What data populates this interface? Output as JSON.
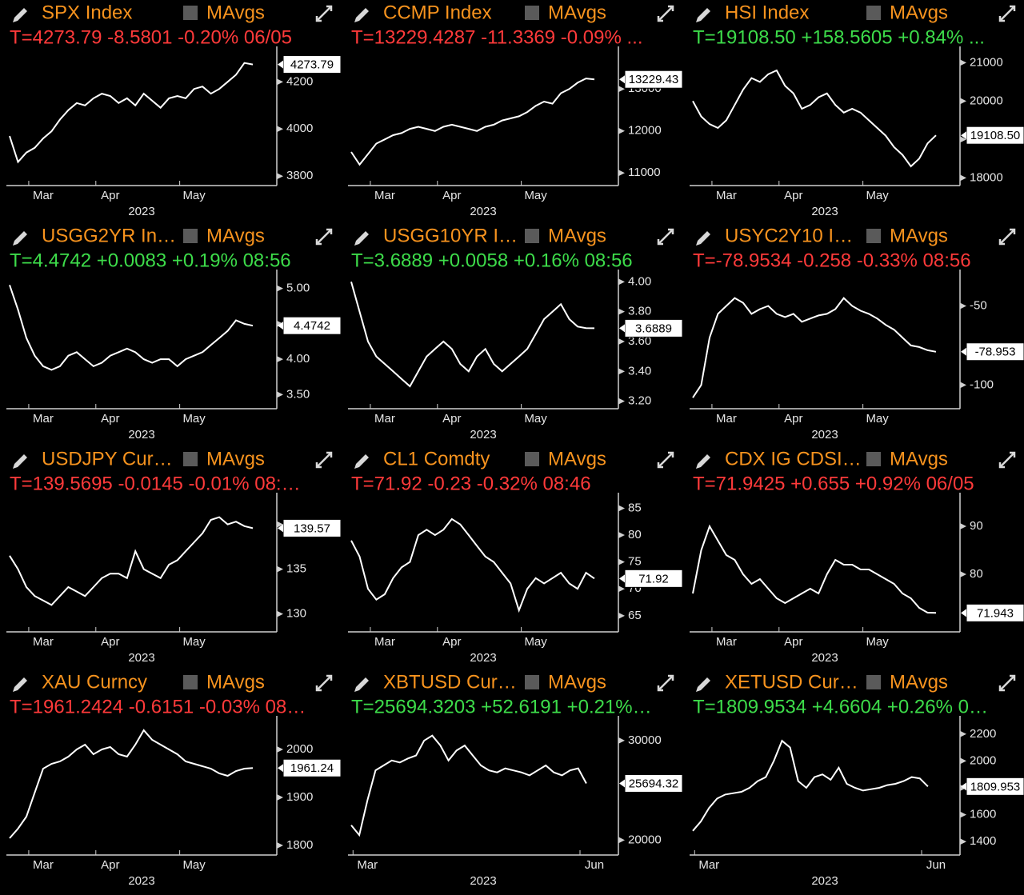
{
  "chart_data": [
    {
      "type": "line",
      "title": "SPX Index",
      "legend_label": "MAvgs",
      "quote": "T=4273.79 -8.5801 -0.20% 06/05",
      "quote_color": "#ff3a3a",
      "color": "#ffffff",
      "xlabel": "2023",
      "categories": [
        null,
        null,
        null,
        null,
        "Mar",
        null,
        null,
        null,
        null,
        null,
        null,
        null,
        "Apr",
        null,
        null,
        null,
        null,
        null,
        null,
        null,
        null,
        null,
        "May",
        null,
        null,
        null,
        null,
        null,
        null,
        null
      ],
      "values": [
        3970,
        3860,
        3900,
        3920,
        3960,
        3990,
        4040,
        4080,
        4110,
        4100,
        4130,
        4150,
        4140,
        4110,
        4130,
        4100,
        4150,
        4120,
        4090,
        4130,
        4140,
        4130,
        4170,
        4180,
        4150,
        4170,
        4200,
        4230,
        4280,
        4273.79
      ],
      "ylim": [
        3760,
        4330
      ],
      "yticks": [
        3800,
        4000,
        4200
      ],
      "last_label": 4273.79
    },
    {
      "type": "line",
      "title": "CCMP Index",
      "legend_label": "MAvgs",
      "quote": "T=13229.4287 -11.3369 -0.09% ...",
      "quote_color": "#ff3a3a",
      "color": "#ffffff",
      "xlabel": "2023",
      "categories": [
        null,
        null,
        null,
        null,
        "Mar",
        null,
        null,
        null,
        null,
        null,
        null,
        null,
        "Apr",
        null,
        null,
        null,
        null,
        null,
        null,
        null,
        null,
        null,
        "May",
        null,
        null,
        null,
        null,
        null,
        null,
        null
      ],
      "values": [
        11500,
        11200,
        11450,
        11700,
        11800,
        11900,
        11950,
        12050,
        12100,
        12050,
        12000,
        12100,
        12150,
        12100,
        12050,
        12000,
        12100,
        12150,
        12250,
        12300,
        12350,
        12450,
        12600,
        12700,
        12650,
        12900,
        13000,
        13150,
        13250,
        13229.4287
      ],
      "ylim": [
        10700,
        13900
      ],
      "yticks": [
        11000,
        12000,
        13000
      ],
      "last_label": 13229.43
    },
    {
      "type": "line",
      "title": "HSI Index",
      "legend_label": "MAvgs",
      "quote": "T=19108.50 +158.5605 +0.84% ...",
      "quote_color": "#3ddc4a",
      "color": "#ffffff",
      "xlabel": "2023",
      "categories": [
        null,
        null,
        null,
        null,
        "Mar",
        null,
        null,
        null,
        null,
        null,
        null,
        null,
        "Apr",
        null,
        null,
        null,
        null,
        null,
        null,
        null,
        null,
        null,
        "May",
        null,
        null,
        null,
        null,
        null,
        null,
        null
      ],
      "values": [
        20000,
        19600,
        19400,
        19300,
        19500,
        19900,
        20300,
        20600,
        20500,
        20700,
        20800,
        20400,
        20200,
        19800,
        19900,
        20100,
        20200,
        19900,
        19700,
        19800,
        19700,
        19500,
        19300,
        19100,
        18800,
        18600,
        18300,
        18500,
        18900,
        19108.5
      ],
      "ylim": [
        17800,
        21300
      ],
      "yticks": [
        18000,
        19000,
        20000,
        21000
      ],
      "last_label": {
        "value": 19108.5,
        "label": "19108.50"
      }
    },
    {
      "type": "line",
      "title": "USGG2YR In…",
      "legend_label": "MAvgs",
      "quote": "T=4.4742 +0.0083 +0.19% 08:56",
      "quote_color": "#3ddc4a",
      "color": "#ffffff",
      "xlabel": "2023",
      "categories": [
        null,
        null,
        null,
        null,
        "Mar",
        null,
        null,
        null,
        null,
        null,
        null,
        null,
        "Apr",
        null,
        null,
        null,
        null,
        null,
        null,
        null,
        null,
        null,
        "May",
        null,
        null,
        null,
        null,
        null,
        null,
        null
      ],
      "values": [
        5.05,
        4.7,
        4.3,
        4.05,
        3.9,
        3.85,
        3.9,
        4.05,
        4.1,
        4.0,
        3.9,
        3.95,
        4.05,
        4.1,
        4.15,
        4.1,
        4.0,
        3.95,
        4.0,
        4.0,
        3.9,
        4.0,
        4.05,
        4.1,
        4.2,
        4.3,
        4.4,
        4.55,
        4.5,
        4.4742
      ],
      "ylim": [
        3.3,
        5.2
      ],
      "yticks": [
        {
          "value": 3.5,
          "label": "3.50"
        },
        {
          "value": 4,
          "label": "4.00"
        },
        {
          "value": 4.5,
          "label": "4.50"
        },
        {
          "value": 5,
          "label": "5.00"
        }
      ],
      "last_label": 4.4742
    },
    {
      "type": "line",
      "title": "USGG10YR I…",
      "legend_label": "MAvgs",
      "quote": "T=3.6889 +0.0058 +0.16% 08:56",
      "quote_color": "#3ddc4a",
      "color": "#ffffff",
      "xlabel": "2023",
      "categories": [
        null,
        null,
        null,
        null,
        "Mar",
        null,
        null,
        null,
        null,
        null,
        null,
        null,
        "Apr",
        null,
        null,
        null,
        null,
        null,
        null,
        null,
        null,
        null,
        "May",
        null,
        null,
        null,
        null,
        null,
        null,
        null
      ],
      "values": [
        4.0,
        3.8,
        3.6,
        3.5,
        3.45,
        3.4,
        3.35,
        3.3,
        3.4,
        3.5,
        3.55,
        3.6,
        3.55,
        3.45,
        3.4,
        3.5,
        3.55,
        3.45,
        3.4,
        3.45,
        3.5,
        3.55,
        3.65,
        3.75,
        3.8,
        3.85,
        3.75,
        3.7,
        3.69,
        3.6889
      ],
      "ylim": [
        3.15,
        4.05
      ],
      "yticks": [
        {
          "value": 3.2,
          "label": "3.20"
        },
        {
          "value": 3.4,
          "label": "3.40"
        },
        {
          "value": 3.6,
          "label": "3.60"
        },
        {
          "value": 3.8,
          "label": "3.80"
        },
        {
          "value": 4,
          "label": "4.00"
        }
      ],
      "last_label": 3.6889
    },
    {
      "type": "line",
      "title": "USYC2Y10 I…",
      "legend_label": "MAvgs",
      "quote": "T=-78.9534 -0.258 -0.33% 08:56",
      "quote_color": "#ff3a3a",
      "color": "#ffffff",
      "xlabel": "2023",
      "categories": [
        null,
        null,
        null,
        null,
        "Mar",
        null,
        null,
        null,
        null,
        null,
        null,
        null,
        "Apr",
        null,
        null,
        null,
        null,
        null,
        null,
        null,
        null,
        null,
        "May",
        null,
        null,
        null,
        null,
        null,
        null,
        null
      ],
      "values": [
        -108,
        -100,
        -70,
        -55,
        -50,
        -45,
        -48,
        -55,
        -52,
        -50,
        -55,
        -57,
        -55,
        -60,
        -58,
        -56,
        -55,
        -52,
        -45,
        -50,
        -53,
        -55,
        -58,
        -62,
        -65,
        -70,
        -75,
        -76,
        -78,
        -78.9534
      ],
      "ylim": [
        -115,
        -30
      ],
      "yticks": [
        -100,
        -50
      ],
      "last_label": -78.953
    },
    {
      "type": "line",
      "title": "USDJPY Cur…",
      "legend_label": "MAvgs",
      "quote": "T=139.5695 -0.0145 -0.01% 08:…",
      "quote_color": "#ff3a3a",
      "color": "#ffffff",
      "xlabel": "2023",
      "categories": [
        null,
        null,
        null,
        null,
        "Mar",
        null,
        null,
        null,
        null,
        null,
        null,
        null,
        "Apr",
        null,
        null,
        null,
        null,
        null,
        null,
        null,
        null,
        null,
        "May",
        null,
        null,
        null,
        null,
        null,
        null,
        null
      ],
      "values": [
        136.5,
        135,
        133,
        132,
        131.5,
        131,
        132,
        133,
        132.5,
        132,
        133,
        134,
        134.5,
        134.5,
        134,
        137,
        135,
        134.5,
        134,
        135.5,
        136,
        137,
        138,
        139,
        140.5,
        140.8,
        140,
        140.3,
        139.8,
        139.5695
      ],
      "ylim": [
        128,
        143
      ],
      "yticks": [
        130,
        135,
        140
      ],
      "last_label": 139.57
    },
    {
      "type": "line",
      "title": "CL1 Comdty",
      "legend_label": "MAvgs",
      "quote": "T=71.92 -0.23 -0.32% 08:46",
      "quote_color": "#ff3a3a",
      "color": "#ffffff",
      "xlabel": "2023",
      "categories": [
        null,
        null,
        null,
        null,
        "Mar",
        null,
        null,
        null,
        null,
        null,
        null,
        null,
        "Apr",
        null,
        null,
        null,
        null,
        null,
        null,
        null,
        null,
        null,
        "May",
        null,
        null,
        null,
        null,
        null,
        null,
        null
      ],
      "values": [
        79,
        76,
        70,
        68,
        69,
        72,
        74,
        75,
        80,
        81,
        80,
        81,
        83,
        82,
        80,
        78,
        76,
        75,
        73,
        71,
        66,
        70,
        72,
        71,
        72,
        73,
        71,
        70,
        73,
        71.92
      ],
      "ylim": [
        62,
        87
      ],
      "yticks": [
        65,
        70,
        75,
        80,
        85
      ],
      "last_label": 71.92
    },
    {
      "type": "line",
      "title": "CDX IG CDSI…",
      "legend_label": "MAvgs",
      "quote": "T=71.9425 +0.655 +0.92% 06/05",
      "quote_color": "#ff3a3a",
      "color": "#ffffff",
      "xlabel": "2023",
      "categories": [
        null,
        null,
        null,
        null,
        "Mar",
        null,
        null,
        null,
        null,
        null,
        null,
        null,
        "Apr",
        null,
        null,
        null,
        null,
        null,
        null,
        null,
        null,
        null,
        "May",
        null,
        null,
        null,
        null,
        null,
        null,
        null
      ],
      "values": [
        76,
        85,
        90,
        87,
        84,
        83,
        80,
        78,
        79,
        77,
        75,
        74,
        75,
        76,
        77,
        76,
        80,
        83,
        82,
        82,
        81,
        81,
        80,
        79,
        78,
        76,
        75,
        73,
        72,
        71.9425
      ],
      "ylim": [
        68,
        96
      ],
      "yticks": [
        80,
        90
      ],
      "last_label": 71.943
    },
    {
      "type": "line",
      "title": "XAU Curncy",
      "legend_label": "MAvgs",
      "quote": "T=1961.2424 -0.6151 -0.03% 08…",
      "quote_color": "#ff3a3a",
      "color": "#ffffff",
      "xlabel": "2023",
      "categories": [
        null,
        null,
        null,
        null,
        "Mar",
        null,
        null,
        null,
        null,
        null,
        null,
        null,
        "Apr",
        null,
        null,
        null,
        null,
        null,
        null,
        null,
        null,
        null,
        "May",
        null,
        null,
        null,
        null,
        null,
        null,
        null
      ],
      "values": [
        1815,
        1835,
        1860,
        1910,
        1960,
        1970,
        1975,
        1985,
        2000,
        2010,
        1990,
        2000,
        2005,
        1990,
        1985,
        2010,
        2040,
        2020,
        2010,
        2000,
        1990,
        1975,
        1970,
        1965,
        1960,
        1950,
        1945,
        1955,
        1960,
        1961.2424
      ],
      "ylim": [
        1780,
        2060
      ],
      "yticks": [
        1800,
        1900,
        2000
      ],
      "last_label": 1961.24
    },
    {
      "type": "line",
      "title": "XBTUSD Cur…",
      "legend_label": "MAvgs",
      "quote": "T=25694.3203 +52.6191 +0.21%…",
      "quote_color": "#3ddc4a",
      "color": "#ffffff",
      "xlabel": "2023",
      "categories": [
        null,
        null,
        "Mar",
        null,
        null,
        null,
        null,
        null,
        null,
        null,
        null,
        null,
        null,
        null,
        null,
        null,
        null,
        null,
        null,
        null,
        null,
        null,
        null,
        null,
        null,
        null,
        null,
        null,
        null,
        null,
        "Jun"
      ],
      "values": [
        21500,
        20500,
        24000,
        27000,
        27500,
        28000,
        27800,
        28200,
        28500,
        30000,
        30500,
        29500,
        28000,
        29000,
        29500,
        28500,
        27500,
        27000,
        26800,
        27200,
        27000,
        26800,
        26500,
        27000,
        27500,
        26800,
        26500,
        27000,
        27200,
        25694.3203,
        null
      ],
      "ylim": [
        18500,
        32000
      ],
      "yticks": [
        20000,
        30000
      ],
      "last_label": 25694.32
    },
    {
      "type": "line",
      "title": "XETUSD Cur…",
      "legend_label": "MAvgs",
      "quote": "T=1809.9534 +4.6604 +0.26% 0…",
      "quote_color": "#3ddc4a",
      "color": "#ffffff",
      "xlabel": "2023",
      "categories": [
        null,
        null,
        "Mar",
        null,
        null,
        null,
        null,
        null,
        null,
        null,
        null,
        null,
        null,
        null,
        null,
        null,
        null,
        null,
        null,
        null,
        null,
        null,
        null,
        null,
        null,
        null,
        null,
        null,
        null,
        null,
        "Jun"
      ],
      "values": [
        1480,
        1550,
        1650,
        1720,
        1750,
        1760,
        1770,
        1800,
        1850,
        1880,
        2000,
        2150,
        2100,
        1850,
        1800,
        1880,
        1900,
        1860,
        1950,
        1830,
        1800,
        1780,
        1790,
        1800,
        1820,
        1830,
        1850,
        1880,
        1870,
        1809.9534,
        null
      ],
      "ylim": [
        1300,
        2300
      ],
      "yticks": [
        1400,
        1600,
        1800,
        2000,
        2200
      ],
      "last_label": 1809.953
    }
  ]
}
